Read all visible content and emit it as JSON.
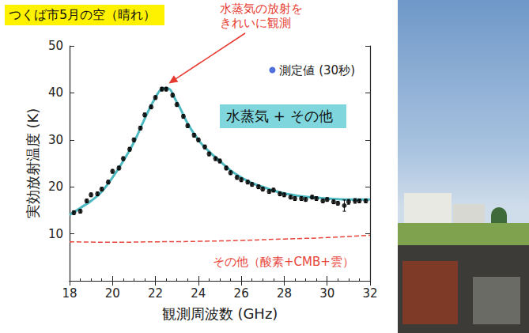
{
  "chart_data": {
    "type": "scatter",
    "title": "つくば市5月の空（晴れ）",
    "x_label": "観測周波数 (GHz)",
    "y_label": "実効放射温度 (K)",
    "annotation": {
      "text": "水蒸気の放射を\nきれいに観測",
      "x": 22.4,
      "y": 41
    },
    "xlim": [
      18,
      32
    ],
    "xticks": [
      18,
      20,
      22,
      24,
      26,
      28,
      30,
      32
    ],
    "ylim": [
      0,
      50
    ],
    "yticks": [
      10,
      20,
      30,
      40,
      50
    ],
    "grid": false,
    "legend": "top-right",
    "series": [
      {
        "name": "測定値 (30秒)",
        "type": "scatter",
        "marker": "circle",
        "color": "#000000",
        "x": [
          18.2,
          18.5,
          18.8,
          19.0,
          19.3,
          19.5,
          19.8,
          20.0,
          20.3,
          20.5,
          20.8,
          21.0,
          21.3,
          21.5,
          21.8,
          22.0,
          22.3,
          22.5,
          22.8,
          23.0,
          23.3,
          23.5,
          23.8,
          24.0,
          24.3,
          24.5,
          24.8,
          25.0,
          25.3,
          25.5,
          25.8,
          26.0,
          26.3,
          26.5,
          26.8,
          27.0,
          27.3,
          27.5,
          27.8,
          28.0,
          28.3,
          28.5,
          28.8,
          29.0,
          29.3,
          29.5,
          29.8,
          30.0,
          30.3,
          30.5,
          30.8,
          31.0,
          31.3,
          31.5,
          31.8
        ],
        "values": [
          14.5,
          14.8,
          17.0,
          18.3,
          18.5,
          19.5,
          21.0,
          23.3,
          24.0,
          26.0,
          28.0,
          30.0,
          32.5,
          35.3,
          37.0,
          39.0,
          40.8,
          40.8,
          39.5,
          37.5,
          35.0,
          33.0,
          31.0,
          30.0,
          28.5,
          27.0,
          26.0,
          25.5,
          24.0,
          23.0,
          22.0,
          21.5,
          21.0,
          20.5,
          20.0,
          19.5,
          19.0,
          19.3,
          18.5,
          18.3,
          17.8,
          17.5,
          17.5,
          17.3,
          17.8,
          17.5,
          17.0,
          17.3,
          16.8,
          16.5,
          16.0,
          16.8,
          17.0,
          17.0,
          17.0
        ],
        "errors": [
          0.4,
          0.4,
          0.4,
          0.4,
          0.4,
          0.4,
          0.4,
          0.4,
          0.4,
          0.4,
          0.4,
          0.4,
          0.4,
          0.4,
          0.4,
          0.4,
          0.4,
          0.4,
          0.4,
          0.4,
          0.4,
          0.4,
          0.4,
          0.4,
          0.4,
          0.4,
          0.4,
          0.4,
          0.4,
          0.4,
          0.4,
          0.4,
          0.4,
          0.4,
          0.4,
          0.4,
          0.4,
          0.4,
          0.4,
          0.4,
          0.4,
          0.4,
          0.4,
          0.4,
          0.4,
          0.4,
          0.4,
          0.4,
          0.4,
          0.4,
          1.2,
          0.5,
          0.5,
          0.4,
          0.4
        ]
      },
      {
        "name": "水蒸気 + その他",
        "type": "line",
        "line_style": "solid",
        "color": "#4fb9c1",
        "x": [
          18,
          18.5,
          19,
          19.5,
          20,
          20.5,
          21,
          21.5,
          22,
          22.3,
          22.5,
          23,
          23.5,
          24,
          24.5,
          25,
          25.5,
          26,
          26.5,
          27,
          27.5,
          28,
          28.5,
          29,
          29.5,
          30,
          30.5,
          31,
          31.5,
          32
        ],
        "values": [
          14.0,
          15.5,
          17.0,
          19.0,
          22.0,
          25.5,
          29.5,
          34.5,
          39.0,
          40.8,
          41.0,
          38.0,
          33.5,
          30.0,
          27.5,
          25.5,
          23.5,
          22.0,
          20.8,
          20.0,
          19.2,
          18.6,
          18.2,
          17.9,
          17.7,
          17.5,
          17.4,
          17.3,
          17.3,
          17.3
        ]
      },
      {
        "name": "その他（酸素+CMB+雲）",
        "type": "line",
        "line_style": "dashed",
        "color": "#e8453c",
        "x": [
          18,
          20,
          22,
          24,
          26,
          28,
          30,
          32
        ],
        "values": [
          8.3,
          8.2,
          8.3,
          8.4,
          8.6,
          8.9,
          9.2,
          9.7
        ]
      }
    ]
  }
}
